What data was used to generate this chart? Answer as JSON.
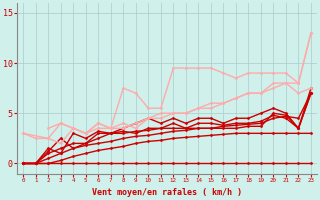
{
  "background_color": "#cff0eb",
  "grid_color": "#aacccc",
  "xlabel": "Vent moyen/en rafales ( km/h )",
  "yticks": [
    0,
    5,
    10,
    15
  ],
  "xlim": [
    -0.5,
    23.5
  ],
  "ylim": [
    -1,
    16
  ],
  "xlabel_color": "#cc0000",
  "tick_color": "#cc0000",
  "series": [
    {
      "x": [
        0,
        1,
        2,
        3,
        4,
        5,
        6,
        7,
        8,
        9,
        10,
        11,
        12,
        13,
        14,
        15,
        16,
        17,
        18,
        19,
        20,
        21,
        22,
        23
      ],
      "y": [
        0,
        0,
        0,
        0,
        0,
        0,
        0,
        0,
        0,
        0,
        0,
        0,
        0,
        0,
        0,
        0,
        0,
        0,
        0,
        0,
        0,
        0,
        0,
        0
      ],
      "color": "#cc0000",
      "linewidth": 1.0,
      "marker": "D",
      "markersize": 1.5
    },
    {
      "x": [
        0,
        1,
        2,
        3,
        4,
        5,
        6,
        7,
        8,
        9,
        10,
        11,
        12,
        13,
        14,
        15,
        16,
        17,
        18,
        19,
        20,
        21,
        22,
        23
      ],
      "y": [
        0,
        0,
        0,
        0.3,
        0.7,
        1.0,
        1.3,
        1.5,
        1.7,
        2.0,
        2.2,
        2.3,
        2.5,
        2.6,
        2.7,
        2.8,
        2.9,
        3.0,
        3.0,
        3.0,
        3.0,
        3.0,
        3.0,
        3.0
      ],
      "color": "#cc0000",
      "linewidth": 1.0,
      "marker": "D",
      "markersize": 1.5
    },
    {
      "x": [
        0,
        1,
        2,
        3,
        4,
        5,
        6,
        7,
        8,
        9,
        10,
        11,
        12,
        13,
        14,
        15,
        16,
        17,
        18,
        19,
        20,
        21,
        22,
        23
      ],
      "y": [
        0,
        0,
        0.5,
        1.0,
        1.5,
        1.8,
        2.0,
        2.2,
        2.5,
        2.7,
        2.8,
        3.0,
        3.2,
        3.3,
        3.5,
        3.5,
        3.7,
        3.8,
        3.9,
        4.0,
        4.5,
        4.7,
        4.5,
        7.0
      ],
      "color": "#cc0000",
      "linewidth": 1.0,
      "marker": "D",
      "markersize": 1.5
    },
    {
      "x": [
        0,
        1,
        2,
        3,
        4,
        5,
        6,
        7,
        8,
        9,
        10,
        11,
        12,
        13,
        14,
        15,
        16,
        17,
        18,
        19,
        20,
        21,
        22,
        23
      ],
      "y": [
        0,
        0,
        1.0,
        1.5,
        2.0,
        2.0,
        2.5,
        3.0,
        3.0,
        3.2,
        3.3,
        3.5,
        3.5,
        3.5,
        3.5,
        3.5,
        3.5,
        3.5,
        3.7,
        3.7,
        5.0,
        4.8,
        3.5,
        7.0
      ],
      "color": "#cc0000",
      "linewidth": 1.0,
      "marker": "D",
      "markersize": 1.5
    },
    {
      "x": [
        0,
        1,
        2,
        3,
        4,
        5,
        6,
        7,
        8,
        9,
        10,
        11,
        12,
        13,
        14,
        15,
        16,
        17,
        18,
        19,
        20,
        21,
        22,
        23
      ],
      "y": [
        0,
        0,
        1.2,
        2.5,
        1.5,
        2.0,
        3.0,
        3.0,
        3.2,
        3.0,
        3.5,
        3.5,
        4.0,
        3.5,
        4.0,
        4.0,
        3.8,
        4.0,
        4.0,
        4.2,
        4.8,
        4.5,
        3.5,
        7.0
      ],
      "color": "#cc0000",
      "linewidth": 1.0,
      "marker": "D",
      "markersize": 1.5
    },
    {
      "x": [
        0,
        1,
        2,
        3,
        4,
        5,
        6,
        7,
        8,
        9,
        10,
        11,
        12,
        13,
        14,
        15,
        16,
        17,
        18,
        19,
        20,
        21,
        22,
        23
      ],
      "y": [
        0,
        0,
        1.5,
        1.0,
        3.0,
        2.5,
        3.2,
        3.0,
        3.5,
        4.0,
        4.5,
        4.0,
        4.5,
        4.0,
        4.5,
        4.5,
        4.0,
        4.5,
        4.5,
        5.0,
        5.5,
        5.0,
        3.5,
        7.5
      ],
      "color": "#cc0000",
      "linewidth": 1.0,
      "marker": "D",
      "markersize": 1.5
    },
    {
      "x": [
        0,
        2,
        3,
        4,
        5,
        6,
        7,
        8,
        9,
        10,
        11,
        12,
        13,
        14,
        15,
        16,
        17,
        18,
        19,
        20,
        21,
        22,
        23
      ],
      "y": [
        3.0,
        2.5,
        4.0,
        3.5,
        3.0,
        4.0,
        3.5,
        7.5,
        7.0,
        5.5,
        5.5,
        9.5,
        9.5,
        9.5,
        9.5,
        9.0,
        8.5,
        9.0,
        9.0,
        9.0,
        9.0,
        8.0,
        13.0
      ],
      "color": "#ffaaaa",
      "linewidth": 1.0,
      "marker": "D",
      "markersize": 1.5
    },
    {
      "x": [
        0,
        1,
        2,
        3,
        4,
        5,
        6,
        7,
        8,
        9,
        10,
        11,
        12,
        13,
        14,
        15,
        16,
        17,
        18,
        19,
        20,
        21,
        22,
        23
      ],
      "y": [
        3.0,
        2.5,
        2.5,
        2.0,
        3.5,
        3.0,
        4.0,
        3.5,
        3.5,
        4.0,
        4.5,
        5.0,
        5.0,
        5.0,
        5.5,
        6.0,
        6.0,
        6.5,
        7.0,
        7.0,
        8.0,
        8.0,
        7.0,
        7.5
      ],
      "color": "#ffaaaa",
      "linewidth": 1.0,
      "marker": "D",
      "markersize": 1.5
    },
    {
      "x": [
        2,
        3,
        4,
        5,
        6,
        7,
        8,
        9,
        10,
        11,
        12,
        13,
        14,
        15,
        16,
        17,
        18,
        19,
        20,
        21,
        22,
        23
      ],
      "y": [
        3.5,
        4.0,
        3.5,
        3.0,
        3.5,
        3.5,
        4.0,
        3.5,
        4.5,
        4.5,
        5.0,
        5.0,
        5.5,
        5.5,
        6.0,
        6.5,
        7.0,
        7.0,
        7.5,
        8.0,
        8.0,
        13.0
      ],
      "color": "#ffaaaa",
      "linewidth": 1.0,
      "marker": "D",
      "markersize": 1.5
    }
  ]
}
